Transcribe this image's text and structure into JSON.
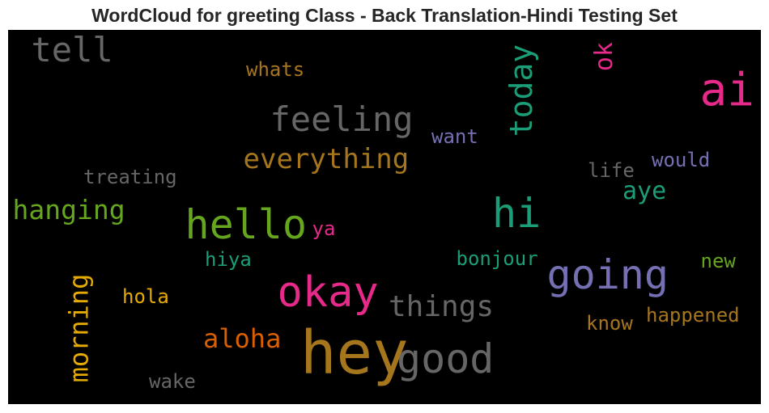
{
  "chart_data": {
    "type": "wordcloud",
    "title": "WordCloud for greeting Class - Back Translation-Hindi Testing Set",
    "background": "#000000",
    "words": [
      {
        "text": "hey",
        "color": "#a6761d"
      },
      {
        "text": "okay",
        "color": "#e7298a"
      },
      {
        "text": "good",
        "color": "#666666"
      },
      {
        "text": "hello",
        "color": "#66a61e"
      },
      {
        "text": "going",
        "color": "#7570b3"
      },
      {
        "text": "ai",
        "color": "#e7298a"
      },
      {
        "text": "hi",
        "color": "#1b9e77"
      },
      {
        "text": "today",
        "color": "#1b9e77"
      },
      {
        "text": "tell",
        "color": "#666666"
      },
      {
        "text": "feeling",
        "color": "#666666"
      },
      {
        "text": "things",
        "color": "#666666"
      },
      {
        "text": "everything",
        "color": "#a6761d"
      },
      {
        "text": "morning",
        "color": "#e6ab02"
      },
      {
        "text": "hanging",
        "color": "#66a61e"
      },
      {
        "text": "aloha",
        "color": "#d95f02"
      },
      {
        "text": "aye",
        "color": "#1b9e77"
      },
      {
        "text": "happened",
        "color": "#a6761d"
      },
      {
        "text": "bonjour",
        "color": "#1b9e77"
      },
      {
        "text": "treating",
        "color": "#666666"
      },
      {
        "text": "hola",
        "color": "#e6ab02"
      },
      {
        "text": "whats",
        "color": "#a6761d"
      },
      {
        "text": "want",
        "color": "#7570b3"
      },
      {
        "text": "would",
        "color": "#7570b3"
      },
      {
        "text": "know",
        "color": "#a6761d"
      },
      {
        "text": "new",
        "color": "#66a61e"
      },
      {
        "text": "life",
        "color": "#666666"
      },
      {
        "text": "hiya",
        "color": "#1b9e77"
      },
      {
        "text": "wake",
        "color": "#666666"
      },
      {
        "text": "ok",
        "color": "#e7298a"
      },
      {
        "text": "ya",
        "color": "#e7298a"
      }
    ]
  }
}
